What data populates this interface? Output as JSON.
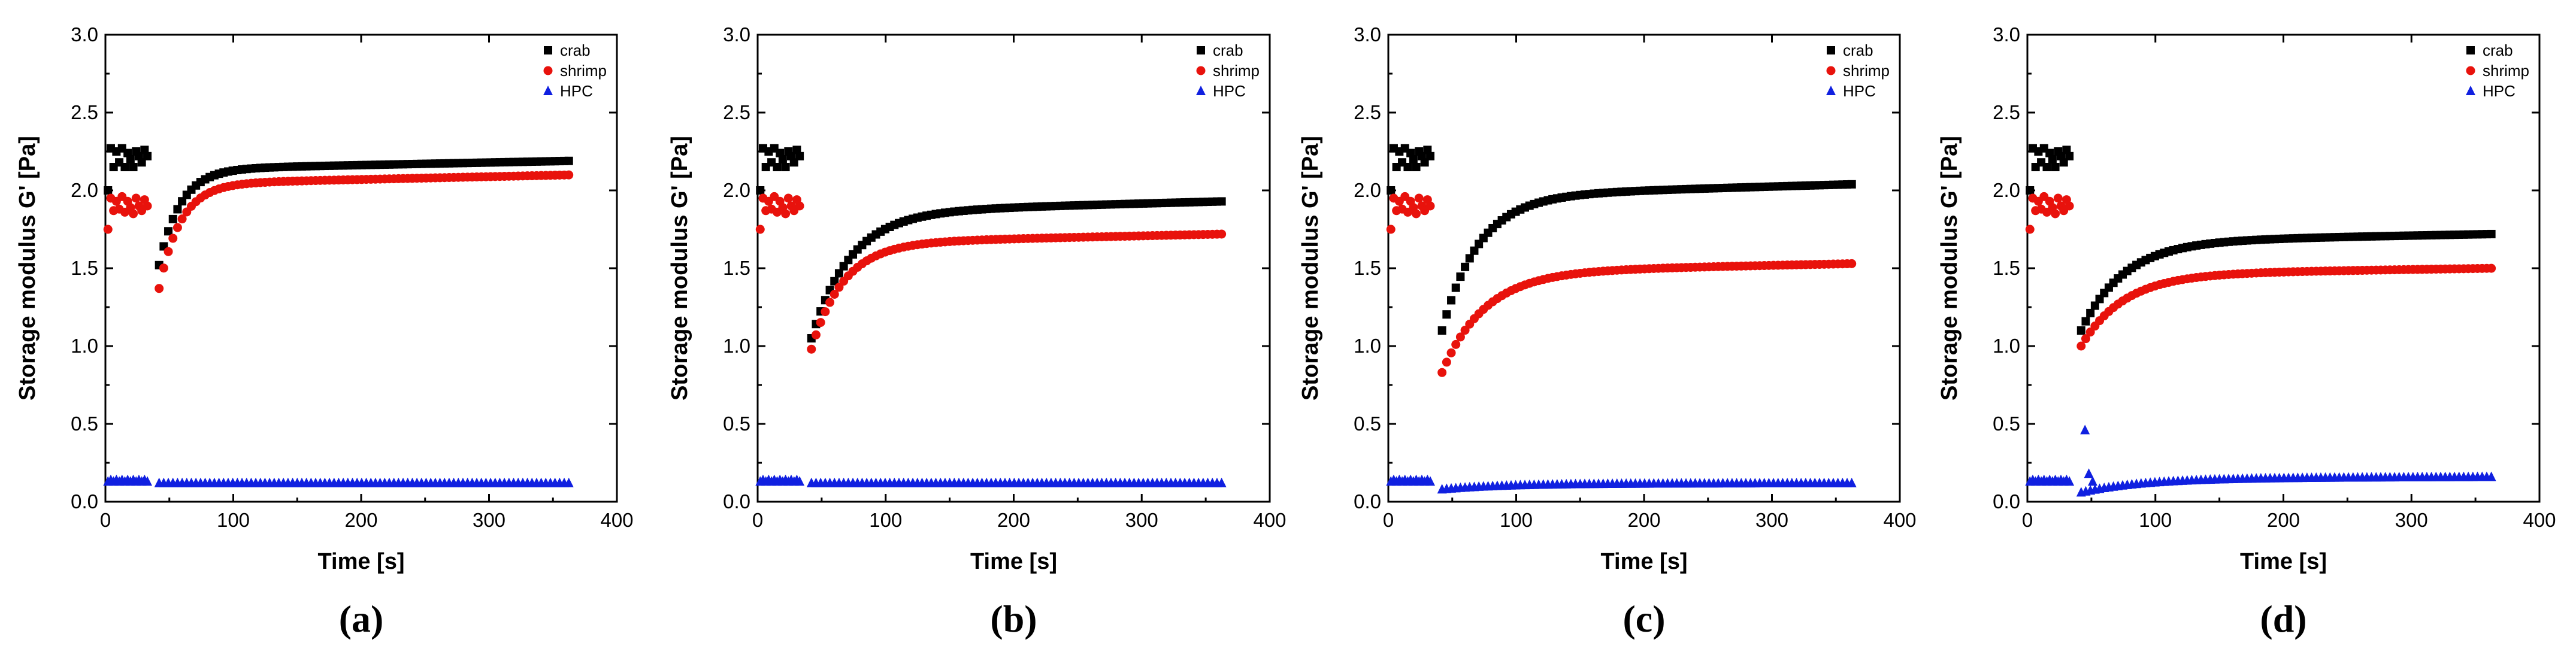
{
  "figure": {
    "panels": [
      "(a)",
      "(b)",
      "(c)",
      "(d)"
    ]
  },
  "colors": {
    "crab": "#000000",
    "shrimp": "#e8120c",
    "HPC": "#1020e0"
  },
  "chart_data": [
    {
      "type": "scatter",
      "panel_label": "(a)",
      "xlabel": "Time [s]",
      "ylabel": "Storage modulus G' [Pa]",
      "xlim": [
        0,
        400
      ],
      "ylim": [
        0,
        3.0
      ],
      "xticks": [
        "0",
        "100",
        "200",
        "300",
        "400"
      ],
      "yticks": [
        "0.0",
        "0.5",
        "1.0",
        "1.5",
        "2.0",
        "2.5",
        "3.0"
      ],
      "legend": [
        "crab",
        "shrimp",
        "HPC"
      ],
      "series": [
        {
          "name": "crab",
          "marker": "square",
          "initial": [
            2.0,
            2.27,
            2.15,
            2.25,
            2.18,
            2.27,
            2.15,
            2.24,
            2.2,
            2.15,
            2.25,
            2.22,
            2.18,
            2.26,
            2.22
          ],
          "recovery": {
            "start": 1.52,
            "end": 2.19,
            "rate": 0.06
          }
        },
        {
          "name": "shrimp",
          "marker": "circle",
          "initial": [
            1.75,
            1.95,
            1.87,
            1.93,
            1.88,
            1.96,
            1.86,
            1.93,
            1.89,
            1.85,
            1.95,
            1.9,
            1.87,
            1.94,
            1.9
          ],
          "recovery": {
            "start": 1.37,
            "end": 2.1,
            "rate": 0.06
          }
        },
        {
          "name": "HPC",
          "marker": "triangle",
          "initial": [
            0.13,
            0.14,
            0.13,
            0.14,
            0.13,
            0.14,
            0.13,
            0.14,
            0.13,
            0.14,
            0.13,
            0.14,
            0.13,
            0.14,
            0.13
          ],
          "recovery": {
            "start": 0.12,
            "end": 0.12,
            "rate": 0.05
          }
        }
      ]
    },
    {
      "type": "scatter",
      "panel_label": "(b)",
      "xlabel": "Time [s]",
      "ylabel": "Storage modulus G' [Pa]",
      "xlim": [
        0,
        400
      ],
      "ylim": [
        0,
        3.0
      ],
      "xticks": [
        "0",
        "100",
        "200",
        "300",
        "400"
      ],
      "yticks": [
        "0.0",
        "0.5",
        "1.0",
        "1.5",
        "2.0",
        "2.5",
        "3.0"
      ],
      "legend": [
        "crab",
        "shrimp",
        "HPC"
      ],
      "series": [
        {
          "name": "crab",
          "marker": "square",
          "initial": [
            2.0,
            2.27,
            2.15,
            2.25,
            2.18,
            2.27,
            2.15,
            2.24,
            2.2,
            2.15,
            2.25,
            2.22,
            2.18,
            2.26,
            2.22
          ],
          "recovery": {
            "start": 1.05,
            "end": 1.93,
            "rate": 0.033
          }
        },
        {
          "name": "shrimp",
          "marker": "circle",
          "initial": [
            1.75,
            1.95,
            1.87,
            1.93,
            1.88,
            1.96,
            1.86,
            1.93,
            1.89,
            1.85,
            1.95,
            1.9,
            1.87,
            1.94,
            1.9
          ],
          "recovery": {
            "start": 0.98,
            "end": 1.72,
            "rate": 0.04
          }
        },
        {
          "name": "HPC",
          "marker": "triangle",
          "initial": [
            0.13,
            0.14,
            0.13,
            0.14,
            0.13,
            0.14,
            0.13,
            0.14,
            0.13,
            0.14,
            0.13,
            0.14,
            0.13,
            0.14,
            0.13
          ],
          "recovery": {
            "start": 0.12,
            "end": 0.12,
            "rate": 0.05
          }
        }
      ]
    },
    {
      "type": "scatter",
      "panel_label": "(c)",
      "xlabel": "Time [s]",
      "ylabel": "Storage modulus G' [Pa]",
      "xlim": [
        0,
        400
      ],
      "ylim": [
        0,
        3.0
      ],
      "xticks": [
        "0",
        "100",
        "200",
        "300",
        "400"
      ],
      "yticks": [
        "0.0",
        "0.5",
        "1.0",
        "1.5",
        "2.0",
        "2.5",
        "3.0"
      ],
      "legend": [
        "crab",
        "shrimp",
        "HPC"
      ],
      "series": [
        {
          "name": "crab",
          "marker": "square",
          "initial": [
            2.0,
            2.27,
            2.15,
            2.25,
            2.18,
            2.27,
            2.15,
            2.24,
            2.2,
            2.15,
            2.25,
            2.22,
            2.18,
            2.26,
            2.22
          ],
          "recovery": {
            "start": 1.1,
            "end": 2.04,
            "rate": 0.035
          }
        },
        {
          "name": "shrimp",
          "marker": "circle",
          "initial": [
            1.75,
            1.95,
            1.87,
            1.93,
            1.88,
            1.96,
            1.86,
            1.93,
            1.89,
            1.85,
            1.95,
            1.9,
            1.87,
            1.94,
            1.9
          ],
          "recovery": {
            "start": 0.83,
            "end": 1.53,
            "rate": 0.03
          }
        },
        {
          "name": "HPC",
          "marker": "triangle",
          "initial": [
            0.13,
            0.14,
            0.13,
            0.14,
            0.13,
            0.14,
            0.13,
            0.14,
            0.13,
            0.14,
            0.13,
            0.14,
            0.13,
            0.14,
            0.13
          ],
          "recovery": {
            "start": 0.08,
            "end": 0.12,
            "rate": 0.02
          }
        }
      ]
    },
    {
      "type": "scatter",
      "panel_label": "(d)",
      "xlabel": "Time [s]",
      "ylabel": "Storage modulus G' [Pa]",
      "xlim": [
        0,
        400
      ],
      "ylim": [
        0,
        3.0
      ],
      "xticks": [
        "0",
        "100",
        "200",
        "300",
        "400"
      ],
      "yticks": [
        "0.0",
        "0.5",
        "1.0",
        "1.5",
        "2.0",
        "2.5",
        "3.0"
      ],
      "legend": [
        "crab",
        "shrimp",
        "HPC"
      ],
      "series": [
        {
          "name": "crab",
          "marker": "square",
          "initial": [
            2.0,
            2.27,
            2.15,
            2.25,
            2.18,
            2.27,
            2.15,
            2.24,
            2.2,
            2.15,
            2.25,
            2.22,
            2.18,
            2.26,
            2.22
          ],
          "recovery": {
            "start": 1.1,
            "end": 1.72,
            "rate": 0.03
          }
        },
        {
          "name": "shrimp",
          "marker": "circle",
          "initial": [
            1.75,
            1.95,
            1.87,
            1.93,
            1.88,
            1.96,
            1.86,
            1.93,
            1.89,
            1.85,
            1.95,
            1.9,
            1.87,
            1.94,
            1.9
          ],
          "recovery": {
            "start": 1.0,
            "end": 1.5,
            "rate": 0.03
          }
        },
        {
          "name": "HPC",
          "marker": "triangle",
          "initial": [
            0.13,
            0.14,
            0.13,
            0.14,
            0.13,
            0.14,
            0.13,
            0.14,
            0.13,
            0.14,
            0.13,
            0.14,
            0.13,
            0.14,
            0.13
          ],
          "recovery": {
            "start": 0.06,
            "end": 0.16,
            "rate": 0.02
          },
          "spike": [
            [
              45,
              0.46
            ],
            [
              48,
              0.18
            ],
            [
              51,
              0.13
            ]
          ]
        }
      ]
    }
  ]
}
